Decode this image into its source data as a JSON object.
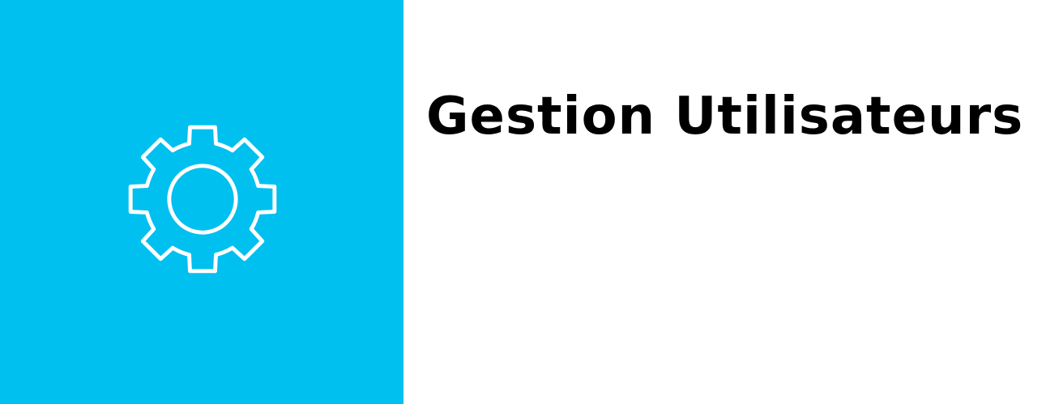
{
  "tile": {
    "label": "Gestion Utilisateurs",
    "icon": "gear-icon",
    "accent_color": "#00c0f0",
    "icon_color": "#ffffff"
  }
}
